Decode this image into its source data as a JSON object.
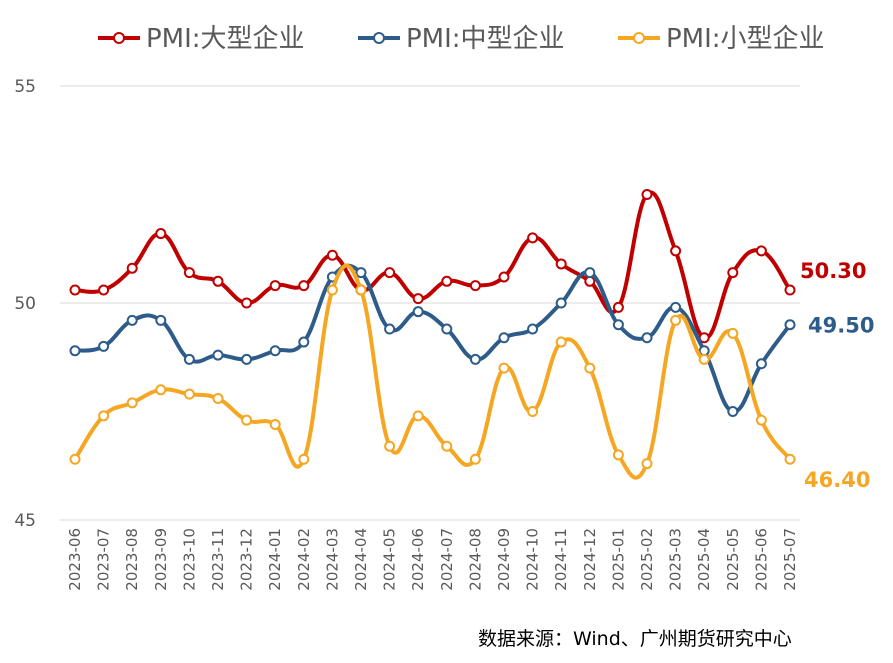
{
  "chart_data": {
    "type": "line",
    "categories": [
      "2023-06",
      "2023-07",
      "2023-08",
      "2023-09",
      "2023-10",
      "2023-11",
      "2023-12",
      "2024-01",
      "2024-02",
      "2024-03",
      "2024-04",
      "2024-05",
      "2024-06",
      "2024-07",
      "2024-08",
      "2024-09",
      "2024-10",
      "2024-11",
      "2024-12",
      "2025-01",
      "2025-02",
      "2025-03",
      "2025-04",
      "2025-05",
      "2025-06",
      "2025-07"
    ],
    "ylim": [
      45,
      55
    ],
    "yticks": [
      "45",
      "50",
      "55"
    ],
    "grid": "horizontal",
    "legend_position": "top",
    "series": [
      {
        "name": "PMI:大型企业",
        "color": "#C00000",
        "values": [
          50.3,
          50.3,
          50.8,
          51.6,
          50.7,
          50.5,
          50.0,
          50.4,
          50.4,
          51.1,
          50.3,
          50.7,
          50.1,
          50.5,
          50.4,
          50.6,
          51.5,
          50.9,
          50.5,
          49.9,
          52.5,
          51.2,
          49.2,
          50.7,
          51.2,
          50.3
        ],
        "end_label": "50.30"
      },
      {
        "name": "PMI:中型企业",
        "color": "#2E5C8A",
        "values": [
          48.9,
          49.0,
          49.6,
          49.6,
          48.7,
          48.8,
          48.7,
          48.9,
          49.1,
          50.6,
          50.7,
          49.4,
          49.8,
          49.4,
          48.7,
          49.2,
          49.4,
          50.0,
          50.7,
          49.5,
          49.2,
          49.9,
          48.9,
          47.5,
          48.6,
          49.5
        ],
        "end_label": "49.50"
      },
      {
        "name": "PMI:小型企业",
        "color": "#F5A623",
        "values": [
          46.4,
          47.4,
          47.7,
          48.0,
          47.9,
          47.8,
          47.3,
          47.2,
          46.4,
          50.3,
          50.3,
          46.7,
          47.4,
          46.7,
          46.4,
          48.5,
          47.5,
          49.1,
          48.5,
          46.5,
          46.3,
          49.6,
          48.7,
          49.3,
          47.3,
          46.4
        ],
        "end_label": "46.40"
      }
    ]
  },
  "footer": {
    "source": "数据来源：Wind、广州期货研究中心"
  }
}
